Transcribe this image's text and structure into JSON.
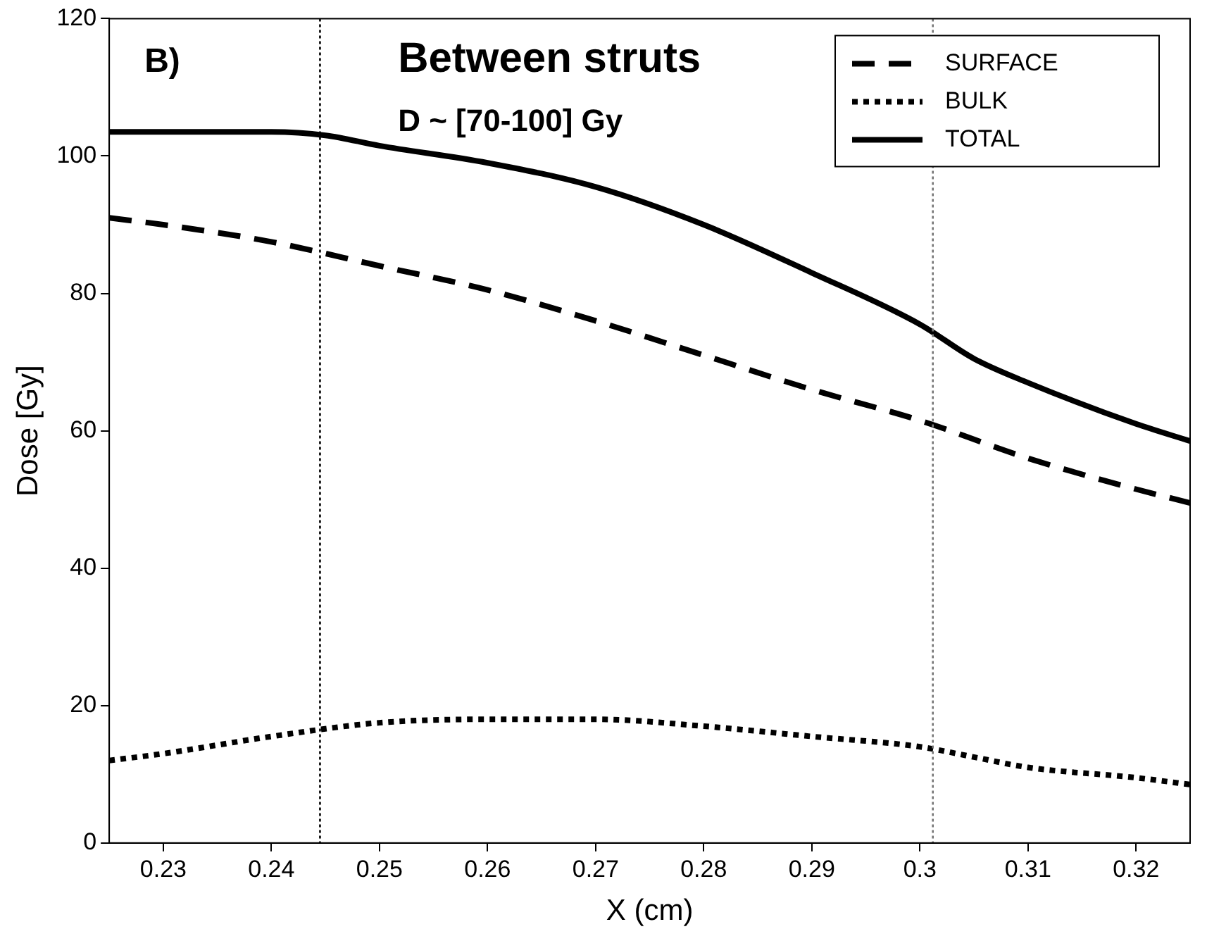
{
  "chart_data": {
    "type": "line",
    "xlabel": "X (cm)",
    "ylabel": "Dose [Gy]",
    "annotations": [
      "B)",
      "Between struts",
      "D ~ [70-100] Gy"
    ],
    "xlim": [
      0.225,
      0.325
    ],
    "xticks": [
      0.23,
      0.24,
      0.25,
      0.26,
      0.27,
      0.28,
      0.29,
      0.3,
      0.31,
      0.32
    ],
    "ylim": [
      0,
      120
    ],
    "yticks": [
      0,
      20,
      40,
      60,
      80,
      100,
      120
    ],
    "grid": false,
    "legend": "top right",
    "marker": "none",
    "ref_lines": [
      {
        "axis": "x",
        "value": 0.2445,
        "color": "#000000",
        "line_style": "dotted"
      },
      {
        "axis": "x",
        "value": 0.3012,
        "color": "#777777",
        "line_style": "dotted"
      }
    ],
    "series": [
      {
        "name": "SURFACE",
        "color": "#000000",
        "line_style": "dashed",
        "x": [
          0.225,
          0.23,
          0.24,
          0.25,
          0.26,
          0.27,
          0.28,
          0.29,
          0.3,
          0.31,
          0.32,
          0.325
        ],
        "values": [
          91,
          90,
          87.5,
          84,
          80.5,
          76,
          71,
          66,
          61.5,
          56,
          51.5,
          49.5
        ]
      },
      {
        "name": "BULK",
        "color": "#000000",
        "line_style": "dotted",
        "x": [
          0.225,
          0.23,
          0.24,
          0.25,
          0.26,
          0.27,
          0.28,
          0.29,
          0.3,
          0.305,
          0.31,
          0.32,
          0.325
        ],
        "values": [
          12,
          13,
          15.5,
          17.5,
          18,
          18,
          17,
          15.5,
          14,
          12.5,
          11,
          9.5,
          8.5
        ]
      },
      {
        "name": "TOTAL",
        "color": "#000000",
        "line_style": "solid",
        "x": [
          0.225,
          0.24,
          0.245,
          0.25,
          0.26,
          0.27,
          0.28,
          0.29,
          0.3,
          0.305,
          0.31,
          0.32,
          0.325
        ],
        "values": [
          103.5,
          103.5,
          103,
          101.5,
          99,
          95.5,
          90,
          83,
          75.5,
          70.5,
          67,
          61,
          58.5
        ]
      }
    ]
  }
}
